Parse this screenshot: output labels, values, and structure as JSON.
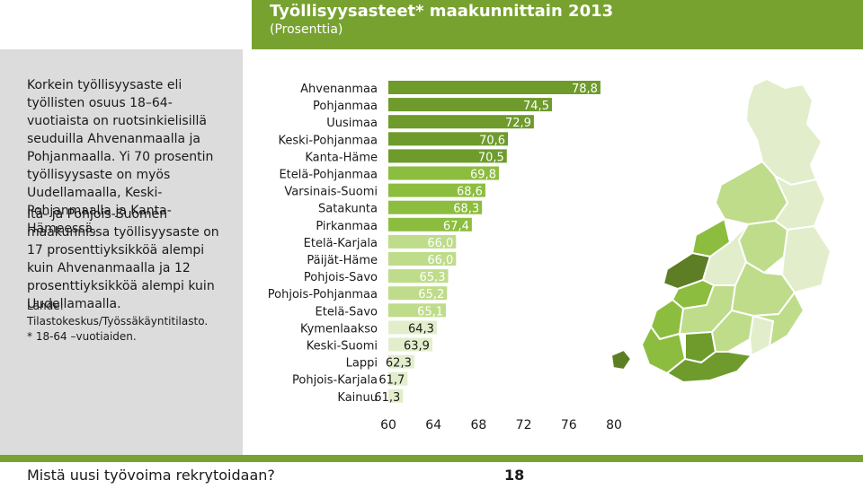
{
  "header": {
    "title": "Työllisyysasteet* maakunnittain 2013",
    "subtitle": "(Prosenttia)"
  },
  "sidebar": {
    "paragraph1": "Korkein työllisyysaste eli työllisten osuus 18–64-vuotiaista on ruotsinkielisillä seuduilla Ahvenanmaalla ja Pohjanmaalla. Yi 70 prosentin työllisyysaste on myös Uudellamaalla, Keski-Pohjanmaalla ja Kanta-Hämeessä.",
    "paragraph2": "Itä- ja Pohjois-Suomen maakunnissa työllisyysaste on 17 prosenttiyksikköä alempi kuin Ahvenanmaalla ja 12 prosenttiyksikköä alempi kuin Uudellamaalla.",
    "source": "Lähde: Tilastokeskus/Työssäkäyntitilasto.",
    "footnote": "* 18-64 –vuotiaiden."
  },
  "footer": {
    "question": "Mistä uusi työvoima rekrytoidaan?",
    "page_number": "18"
  },
  "colors": {
    "brand_green": "#78a22f",
    "bar_dark": "#6e9b2c",
    "bar_mid": "#8cbd3f",
    "bar_light": "#bedc8a",
    "bar_pale": "#e2eecb",
    "sidebar_gray": "#dcdcdc",
    "map_dark": "#5d7e25",
    "map_pale": "#dbe9bf"
  },
  "chart_data": {
    "type": "bar",
    "orientation": "horizontal",
    "categories": [
      "Ahvenanmaa",
      "Pohjanmaa",
      "Uusimaa",
      "Keski-Pohjanmaa",
      "Kanta-Häme",
      "Etelä-Pohjanmaa",
      "Varsinais-Suomi",
      "Satakunta",
      "Pirkanmaa",
      "Etelä-Karjala",
      "Päijät-Häme",
      "Pohjois-Savo",
      "Pohjois-Pohjanmaa",
      "Etelä-Savo",
      "Kymenlaakso",
      "Keski-Suomi",
      "Lappi",
      "Pohjois-Karjala",
      "Kainuu"
    ],
    "values": [
      78.8,
      74.5,
      72.9,
      70.6,
      70.5,
      69.8,
      68.6,
      68.3,
      67.4,
      66.0,
      66.0,
      65.3,
      65.2,
      65.1,
      64.3,
      63.9,
      62.3,
      61.7,
      61.3
    ],
    "value_labels": [
      "78,8",
      "74,5",
      "72,9",
      "70,6",
      "70,5",
      "69,8",
      "68,6",
      "68,3",
      "67,4",
      "66,0",
      "66,0",
      "65,3",
      "65,2",
      "65,1",
      "64,3",
      "63,9",
      "62,3",
      "61,7",
      "61,3"
    ],
    "xlim": [
      60,
      80
    ],
    "xticks": [
      "60",
      "64",
      "68",
      "72",
      "76",
      "80"
    ],
    "grid": false,
    "legend": "none"
  }
}
